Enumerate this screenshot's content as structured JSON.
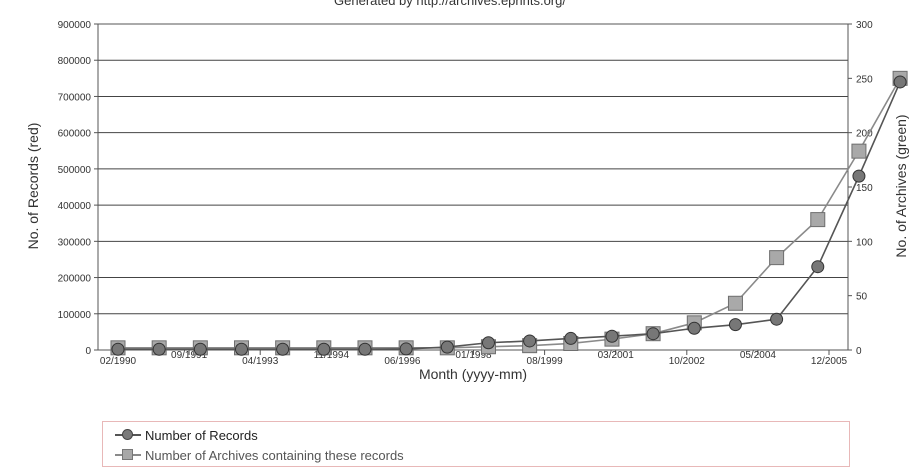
{
  "chart_data": {
    "type": "line",
    "title": "Generated by http://archives.eprints.org/",
    "xlabel": "Month (yyyy-mm)",
    "ylabel": "No. of Records (red)",
    "y2label": "No. of Archives (green)",
    "x_ticks": [
      "02/1990",
      "09/1991",
      "04/1993",
      "11/1994",
      "06/1996",
      "01/1998",
      "08/1999",
      "03/2001",
      "10/2002",
      "05/2004",
      "12/2005"
    ],
    "ylim": [
      0,
      900000
    ],
    "yticks": [
      "0",
      "100000",
      "200000",
      "300000",
      "400000",
      "500000",
      "600000",
      "700000",
      "800000",
      "900000"
    ],
    "y2lim": [
      0,
      300
    ],
    "y2ticks": [
      "0",
      "50",
      "100",
      "150",
      "200",
      "250",
      "300"
    ],
    "grid": "horizontal",
    "legend_position": "bottom",
    "series": [
      {
        "name": "Number of Records",
        "axis": "left",
        "marker": "circle",
        "color": "#555555",
        "points": [
          [
            "02/1990",
            2000
          ],
          [
            "01/1991",
            2000
          ],
          [
            "12/1991",
            2000
          ],
          [
            "11/1992",
            2000
          ],
          [
            "10/1993",
            2000
          ],
          [
            "09/1994",
            2000
          ],
          [
            "08/1995",
            2000
          ],
          [
            "07/1996",
            3000
          ],
          [
            "06/1997",
            8000
          ],
          [
            "05/1998",
            20000
          ],
          [
            "04/1999",
            25000
          ],
          [
            "03/2000",
            32000
          ],
          [
            "02/2001",
            38000
          ],
          [
            "01/2002",
            45000
          ],
          [
            "12/2002",
            60000
          ],
          [
            "11/2003",
            70000
          ],
          [
            "10/2004",
            85000
          ],
          [
            "09/2005",
            230000
          ],
          [
            "08/2006",
            480000
          ],
          [
            "07/2007",
            740000
          ]
        ]
      },
      {
        "name": "Number of Archives containing these records",
        "axis": "right",
        "marker": "square",
        "color": "#8a8a8a",
        "points": [
          [
            "02/1990",
            2
          ],
          [
            "01/1991",
            2
          ],
          [
            "12/1991",
            2
          ],
          [
            "11/1992",
            2
          ],
          [
            "10/1993",
            2
          ],
          [
            "09/1994",
            2
          ],
          [
            "08/1995",
            2
          ],
          [
            "07/1996",
            2
          ],
          [
            "06/1997",
            2
          ],
          [
            "05/1998",
            3
          ],
          [
            "04/1999",
            4
          ],
          [
            "03/2000",
            6
          ],
          [
            "02/2001",
            10
          ],
          [
            "01/2002",
            15
          ],
          [
            "12/2002",
            25
          ],
          [
            "11/2003",
            43
          ],
          [
            "10/2004",
            85
          ],
          [
            "09/2005",
            120
          ],
          [
            "08/2006",
            183
          ],
          [
            "07/2007",
            250
          ]
        ]
      }
    ]
  },
  "legend": {
    "items": [
      {
        "label": "Number of Records"
      },
      {
        "label": "Number of Archives containing these records"
      }
    ]
  }
}
